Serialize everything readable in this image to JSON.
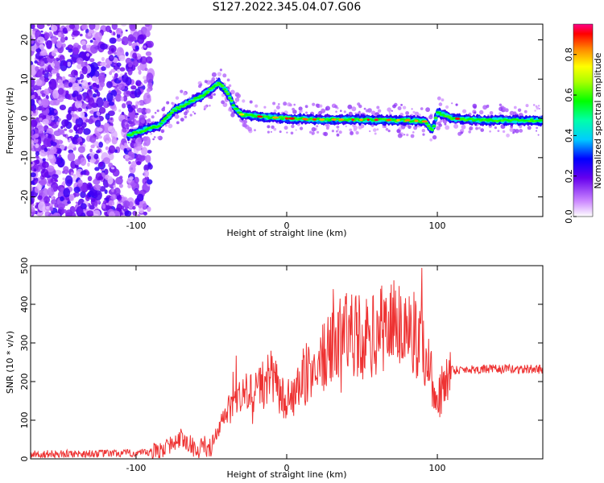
{
  "title": "S127.2022.345.04.07.G06",
  "chart_data": [
    {
      "type": "heatmap",
      "xlabel": "Height of straight line (km)",
      "ylabel": "Frequency (Hz)",
      "xlim": [
        -170,
        170
      ],
      "ylim": [
        -25,
        24
      ],
      "x_ticks": [
        -100,
        0,
        100
      ],
      "y_ticks": [
        -20,
        -10,
        0,
        10,
        20
      ],
      "colorbar": {
        "label": "Normalized spectral amplitude",
        "range": [
          0,
          0.95
        ],
        "ticks": [
          0.0,
          0.2,
          0.4,
          0.6,
          0.8
        ]
      },
      "ridge": {
        "x": [
          -110,
          -95,
          -85,
          -75,
          -65,
          -55,
          -45,
          -40,
          -35,
          -30,
          -20,
          -10,
          0,
          20,
          40,
          60,
          80,
          92,
          97,
          100,
          110,
          130,
          150,
          170
        ],
        "y": [
          -5,
          -3,
          -2,
          2,
          4,
          6,
          9,
          7,
          3,
          1,
          0.5,
          0.3,
          0,
          -0.3,
          -0.3,
          -0.4,
          -0.5,
          -0.8,
          -3,
          1.5,
          0,
          -0.5,
          -0.5,
          -0.5
        ]
      }
    },
    {
      "type": "line",
      "xlabel": "Height of straight line (km)",
      "ylabel": "SNR (10 * v/v)",
      "xlim": [
        -170,
        170
      ],
      "ylim": [
        0,
        500
      ],
      "x_ticks": [
        -100,
        0,
        100
      ],
      "y_ticks": [
        0,
        100,
        200,
        300,
        400,
        500
      ],
      "color": "#ee3333",
      "envelope": {
        "x": [
          -170,
          -90,
          -80,
          -70,
          -60,
          -50,
          -40,
          -30,
          -20,
          -10,
          0,
          10,
          20,
          30,
          40,
          50,
          60,
          70,
          80,
          90,
          95,
          100,
          105,
          110,
          120,
          140,
          170
        ],
        "y": [
          12,
          15,
          30,
          55,
          25,
          30,
          120,
          160,
          180,
          210,
          140,
          190,
          250,
          280,
          340,
          310,
          320,
          360,
          340,
          300,
          240,
          130,
          210,
          230,
          232,
          232,
          232
        ]
      }
    }
  ]
}
